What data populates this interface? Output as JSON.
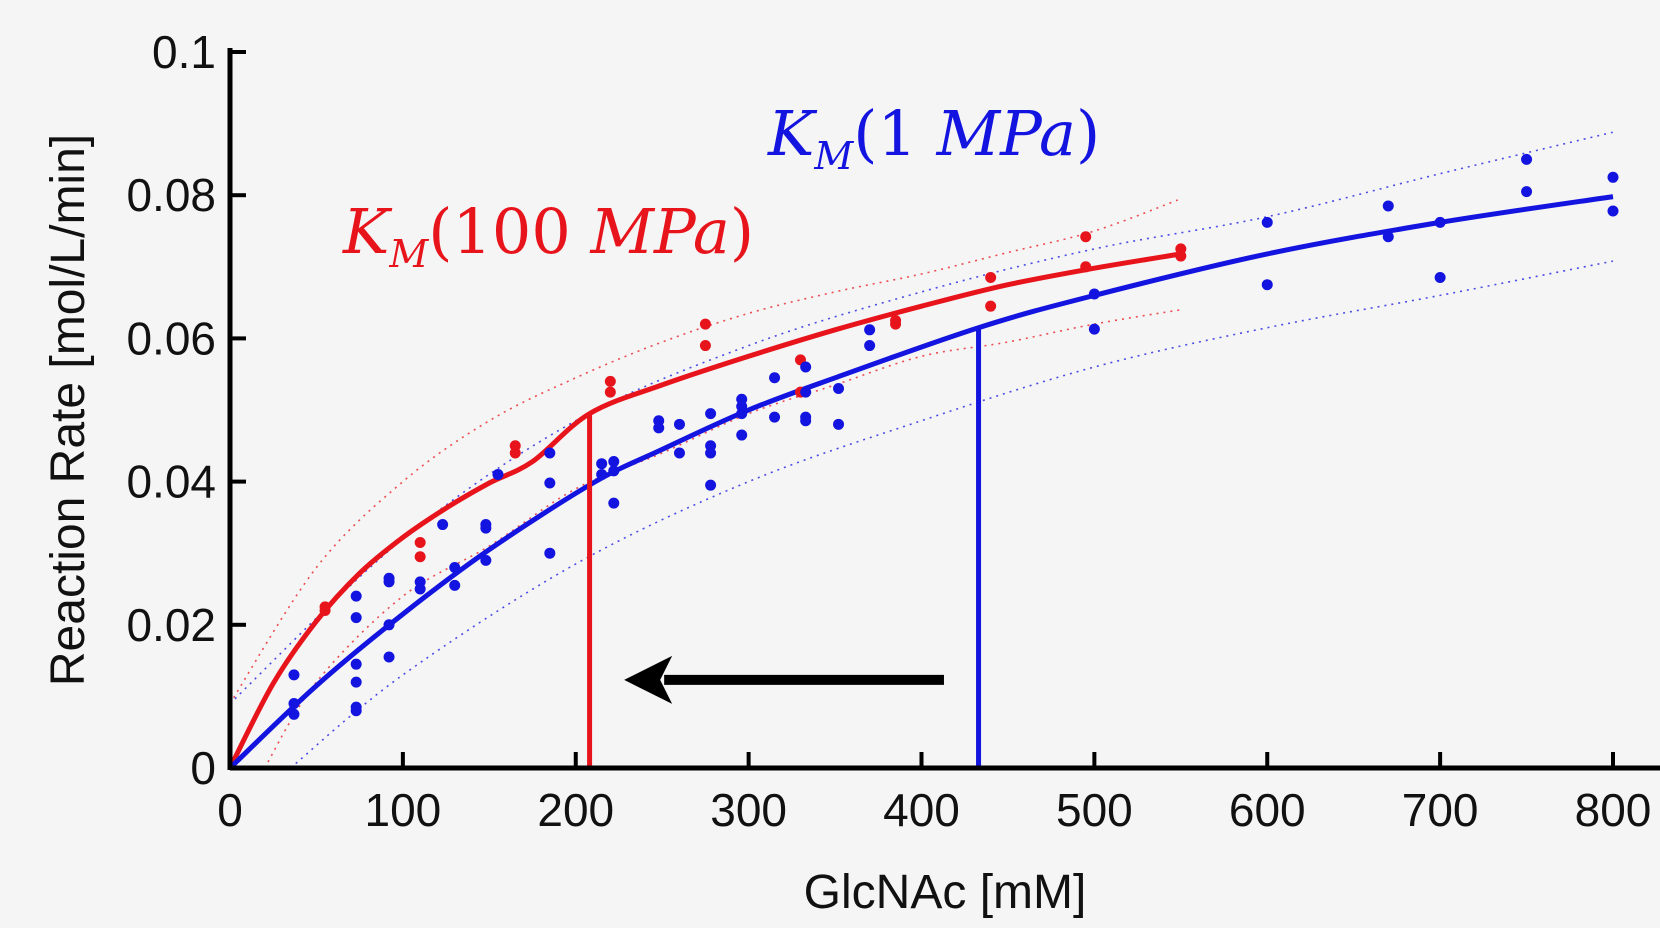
{
  "chart_data": {
    "type": "scatter",
    "xlabel": "GlcNAc [mM]",
    "ylabel": "Reaction Rate [mol/L/min]",
    "xlim": [
      0,
      800
    ],
    "ylim": [
      0,
      0.1
    ],
    "x_ticks": [
      "0",
      "100",
      "200",
      "300",
      "400",
      "500",
      "600",
      "700",
      "800"
    ],
    "y_ticks": [
      "0",
      "0.02",
      "0.04",
      "0.06",
      "0.08",
      "0.1"
    ],
    "grid": false,
    "colors": {
      "high_pressure": "#e8141c",
      "low_pressure": "#1414e0",
      "arrow": "#000000"
    },
    "annotations": [
      {
        "id": "km-1mpa",
        "prefix": "K",
        "sub": "M",
        "upright": "(1 ",
        "italic": "MPa",
        "close": ")",
        "color": "#1414e0"
      },
      {
        "id": "km-100mpa",
        "prefix": "K",
        "sub": "M",
        "upright": "(100 ",
        "italic": "MPa",
        "close": ")",
        "color": "#e8141c"
      }
    ],
    "km_markers": [
      {
        "series": "high_pressure",
        "x": 208,
        "y": 0.0495
      },
      {
        "series": "low_pressure",
        "x": 433,
        "y": 0.0615
      }
    ],
    "arrow": {
      "from_x": 413,
      "to_x": 228,
      "y": 0.0123
    },
    "series": [
      {
        "key": "high_pressure",
        "color": "#e8141c",
        "fit": [
          [
            0,
            0
          ],
          [
            25,
            0.0118
          ],
          [
            50,
            0.0205
          ],
          [
            75,
            0.0272
          ],
          [
            100,
            0.0322
          ],
          [
            125,
            0.0363
          ],
          [
            150,
            0.0398
          ],
          [
            175,
            0.0428
          ],
          [
            208,
            0.0495
          ],
          [
            250,
            0.0535
          ],
          [
            300,
            0.0575
          ],
          [
            350,
            0.0612
          ],
          [
            400,
            0.0645
          ],
          [
            450,
            0.0675
          ],
          [
            500,
            0.0698
          ],
          [
            550,
            0.0718
          ]
        ],
        "band_upper": [
          [
            0,
            0.009
          ],
          [
            50,
            0.028
          ],
          [
            100,
            0.04
          ],
          [
            150,
            0.0485
          ],
          [
            200,
            0.0545
          ],
          [
            250,
            0.0595
          ],
          [
            300,
            0.0635
          ],
          [
            350,
            0.0665
          ],
          [
            400,
            0.069
          ],
          [
            450,
            0.072
          ],
          [
            500,
            0.075
          ],
          [
            550,
            0.0795
          ]
        ],
        "band_lower": [
          [
            20,
            0
          ],
          [
            50,
            0.012
          ],
          [
            100,
            0.024
          ],
          [
            150,
            0.031
          ],
          [
            200,
            0.039
          ],
          [
            250,
            0.044
          ],
          [
            300,
            0.0495
          ],
          [
            350,
            0.0535
          ],
          [
            400,
            0.0575
          ],
          [
            450,
            0.0595
          ],
          [
            500,
            0.062
          ],
          [
            550,
            0.064
          ]
        ],
        "points": [
          [
            55,
            0.0225
          ],
          [
            55,
            0.022
          ],
          [
            110,
            0.0315
          ],
          [
            110,
            0.0295
          ],
          [
            165,
            0.045
          ],
          [
            165,
            0.044
          ],
          [
            220,
            0.054
          ],
          [
            220,
            0.0525
          ],
          [
            275,
            0.062
          ],
          [
            275,
            0.059
          ],
          [
            330,
            0.057
          ],
          [
            330,
            0.0525
          ],
          [
            385,
            0.0625
          ],
          [
            385,
            0.062
          ],
          [
            440,
            0.0685
          ],
          [
            440,
            0.0645
          ],
          [
            495,
            0.0742
          ],
          [
            495,
            0.07
          ],
          [
            550,
            0.0725
          ],
          [
            550,
            0.0715
          ]
        ]
      },
      {
        "key": "low_pressure",
        "color": "#1414e0",
        "fit": [
          [
            0,
            0
          ],
          [
            50,
            0.0115
          ],
          [
            100,
            0.0215
          ],
          [
            150,
            0.0305
          ],
          [
            210,
            0.0398
          ],
          [
            250,
            0.0445
          ],
          [
            300,
            0.05
          ],
          [
            350,
            0.0545
          ],
          [
            433,
            0.0615
          ],
          [
            500,
            0.066
          ],
          [
            600,
            0.0718
          ],
          [
            700,
            0.0762
          ],
          [
            800,
            0.0798
          ]
        ],
        "band_upper": [
          [
            0,
            0.009
          ],
          [
            100,
            0.032
          ],
          [
            200,
            0.0485
          ],
          [
            300,
            0.059
          ],
          [
            400,
            0.0665
          ],
          [
            500,
            0.0725
          ],
          [
            600,
            0.077
          ],
          [
            700,
            0.083
          ],
          [
            800,
            0.0888
          ]
        ],
        "band_lower": [
          [
            35,
            0
          ],
          [
            100,
            0.013
          ],
          [
            200,
            0.0285
          ],
          [
            300,
            0.04
          ],
          [
            400,
            0.0485
          ],
          [
            500,
            0.056
          ],
          [
            600,
            0.0615
          ],
          [
            700,
            0.066
          ],
          [
            800,
            0.0708
          ]
        ],
        "points": [
          [
            37,
            0.013
          ],
          [
            37,
            0.009
          ],
          [
            37,
            0.0075
          ],
          [
            73,
            0.024
          ],
          [
            73,
            0.021
          ],
          [
            73,
            0.0145
          ],
          [
            73,
            0.012
          ],
          [
            73,
            0.0085
          ],
          [
            73,
            0.008
          ],
          [
            92,
            0.0265
          ],
          [
            92,
            0.026
          ],
          [
            92,
            0.02
          ],
          [
            92,
            0.0155
          ],
          [
            110,
            0.026
          ],
          [
            110,
            0.025
          ],
          [
            123,
            0.034
          ],
          [
            130,
            0.028
          ],
          [
            130,
            0.0255
          ],
          [
            148,
            0.034
          ],
          [
            148,
            0.0335
          ],
          [
            148,
            0.029
          ],
          [
            155,
            0.041
          ],
          [
            185,
            0.044
          ],
          [
            185,
            0.0398
          ],
          [
            185,
            0.03
          ],
          [
            215,
            0.0425
          ],
          [
            215,
            0.041
          ],
          [
            222,
            0.0428
          ],
          [
            222,
            0.0415
          ],
          [
            222,
            0.037
          ],
          [
            248,
            0.0485
          ],
          [
            248,
            0.0475
          ],
          [
            260,
            0.048
          ],
          [
            260,
            0.044
          ],
          [
            278,
            0.0495
          ],
          [
            278,
            0.045
          ],
          [
            278,
            0.044
          ],
          [
            278,
            0.0395
          ],
          [
            296,
            0.0515
          ],
          [
            296,
            0.0505
          ],
          [
            296,
            0.0495
          ],
          [
            296,
            0.0465
          ],
          [
            315,
            0.0545
          ],
          [
            315,
            0.049
          ],
          [
            333,
            0.056
          ],
          [
            333,
            0.0525
          ],
          [
            333,
            0.049
          ],
          [
            333,
            0.0485
          ],
          [
            352,
            0.053
          ],
          [
            352,
            0.048
          ],
          [
            370,
            0.0612
          ],
          [
            370,
            0.059
          ],
          [
            500,
            0.0662
          ],
          [
            500,
            0.0613
          ],
          [
            600,
            0.0762
          ],
          [
            600,
            0.0675
          ],
          [
            670,
            0.0785
          ],
          [
            670,
            0.0742
          ],
          [
            700,
            0.0762
          ],
          [
            700,
            0.0685
          ],
          [
            750,
            0.085
          ],
          [
            750,
            0.0805
          ],
          [
            800,
            0.0825
          ],
          [
            800,
            0.0778
          ]
        ]
      }
    ]
  }
}
